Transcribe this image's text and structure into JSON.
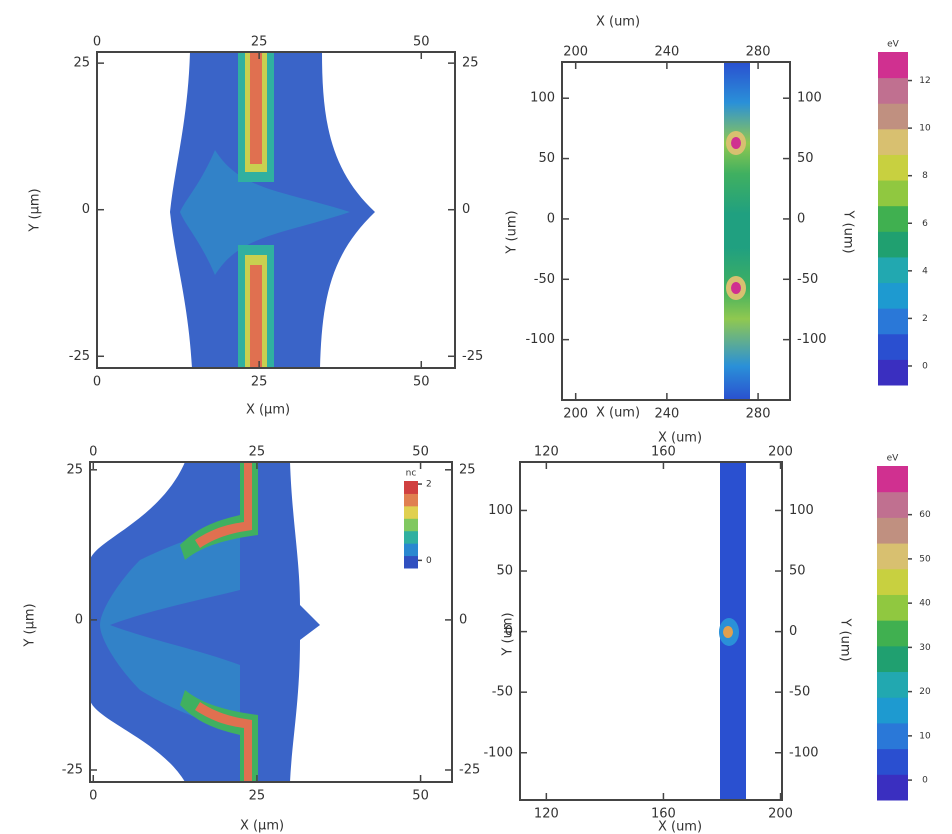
{
  "chart_data": [
    {
      "type": "heatmap",
      "x_label": "X (μm)",
      "y_label": "Y (μm)",
      "xlim": [
        0,
        55.2
      ],
      "ylim": [
        -27,
        26.9
      ],
      "xticks": [
        0,
        25,
        50
      ],
      "yticks": [
        -25,
        0,
        25
      ]
    },
    {
      "type": "heatmap",
      "x_label": "X (um)",
      "y_label": "Y (um)",
      "xlim": [
        194,
        294
      ],
      "ylim": [
        -150,
        130
      ],
      "xticks": [
        200,
        240,
        280
      ],
      "yticks": [
        -100,
        -50,
        0,
        50,
        100
      ],
      "colorbar": {
        "label": "eV",
        "lim": [
          -0.8,
          13.2
        ],
        "ticks": [
          0,
          2,
          4,
          6,
          8,
          10,
          12
        ],
        "colors": [
          "#3a2fc0",
          "#2a4fd0",
          "#2a78d8",
          "#1e9ad0",
          "#22a8b0",
          "#20a070",
          "#40b050",
          "#90c840",
          "#c8d040",
          "#d8c070",
          "#c09080",
          "#c07090",
          "#d03090"
        ]
      }
    },
    {
      "type": "heatmap",
      "x_label": "X (μm)",
      "y_label": "Y (μm)",
      "xlim": [
        -0.5,
        54.8
      ],
      "ylim": [
        -27,
        26.3
      ],
      "xticks": [
        0,
        25,
        50
      ],
      "yticks": [
        -25,
        0,
        25
      ],
      "colorbar": {
        "label": "nc",
        "lim": [
          -0.2,
          2.08
        ],
        "ticks": [
          0,
          2
        ],
        "colors": [
          "#3050c0",
          "#2a88d0",
          "#30b0a0",
          "#80c860",
          "#e0d050",
          "#e08050",
          "#d04040"
        ]
      }
    },
    {
      "type": "heatmap",
      "x_label": "X (um)",
      "y_label": "Y (um)",
      "xlim": [
        111,
        200.5
      ],
      "ylim": [
        -139,
        140
      ],
      "xticks": [
        120,
        160,
        200
      ],
      "yticks": [
        -100,
        -50,
        0,
        50,
        100
      ],
      "colorbar": {
        "label": "eV",
        "lim": [
          -4.5,
          71
        ],
        "ticks": [
          0,
          10,
          20,
          30,
          40,
          50,
          60
        ],
        "colors": [
          "#3a2fc0",
          "#2a4fd0",
          "#2a78d8",
          "#1e9ad0",
          "#22a8b0",
          "#20a070",
          "#40b050",
          "#90c840",
          "#c8d040",
          "#d8c070",
          "#c09080",
          "#c07090",
          "#d03090"
        ]
      }
    }
  ]
}
